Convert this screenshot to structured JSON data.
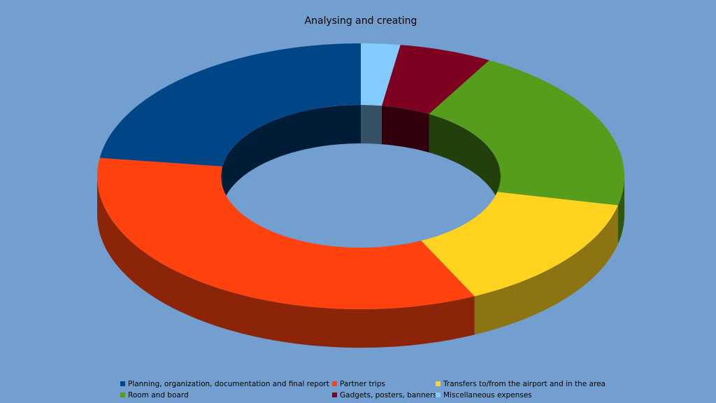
{
  "chart_data": {
    "type": "donut3d",
    "title": "Analysing and creating",
    "categories": [
      "Planning, organization, documentation and final report",
      "Partner trips",
      "Transfers to/from the airport and in the area",
      "Room and board",
      "Gadgets, posters, banners",
      "Miscellaneous expenses"
    ],
    "values": [
      22.8,
      34.3,
      14.4,
      20.4,
      5.7,
      2.4
    ],
    "colors": [
      "#004586",
      "#ff420e",
      "#ffd320",
      "#579d1c",
      "#7e0021",
      "#83caff"
    ],
    "legend": "bottom"
  }
}
